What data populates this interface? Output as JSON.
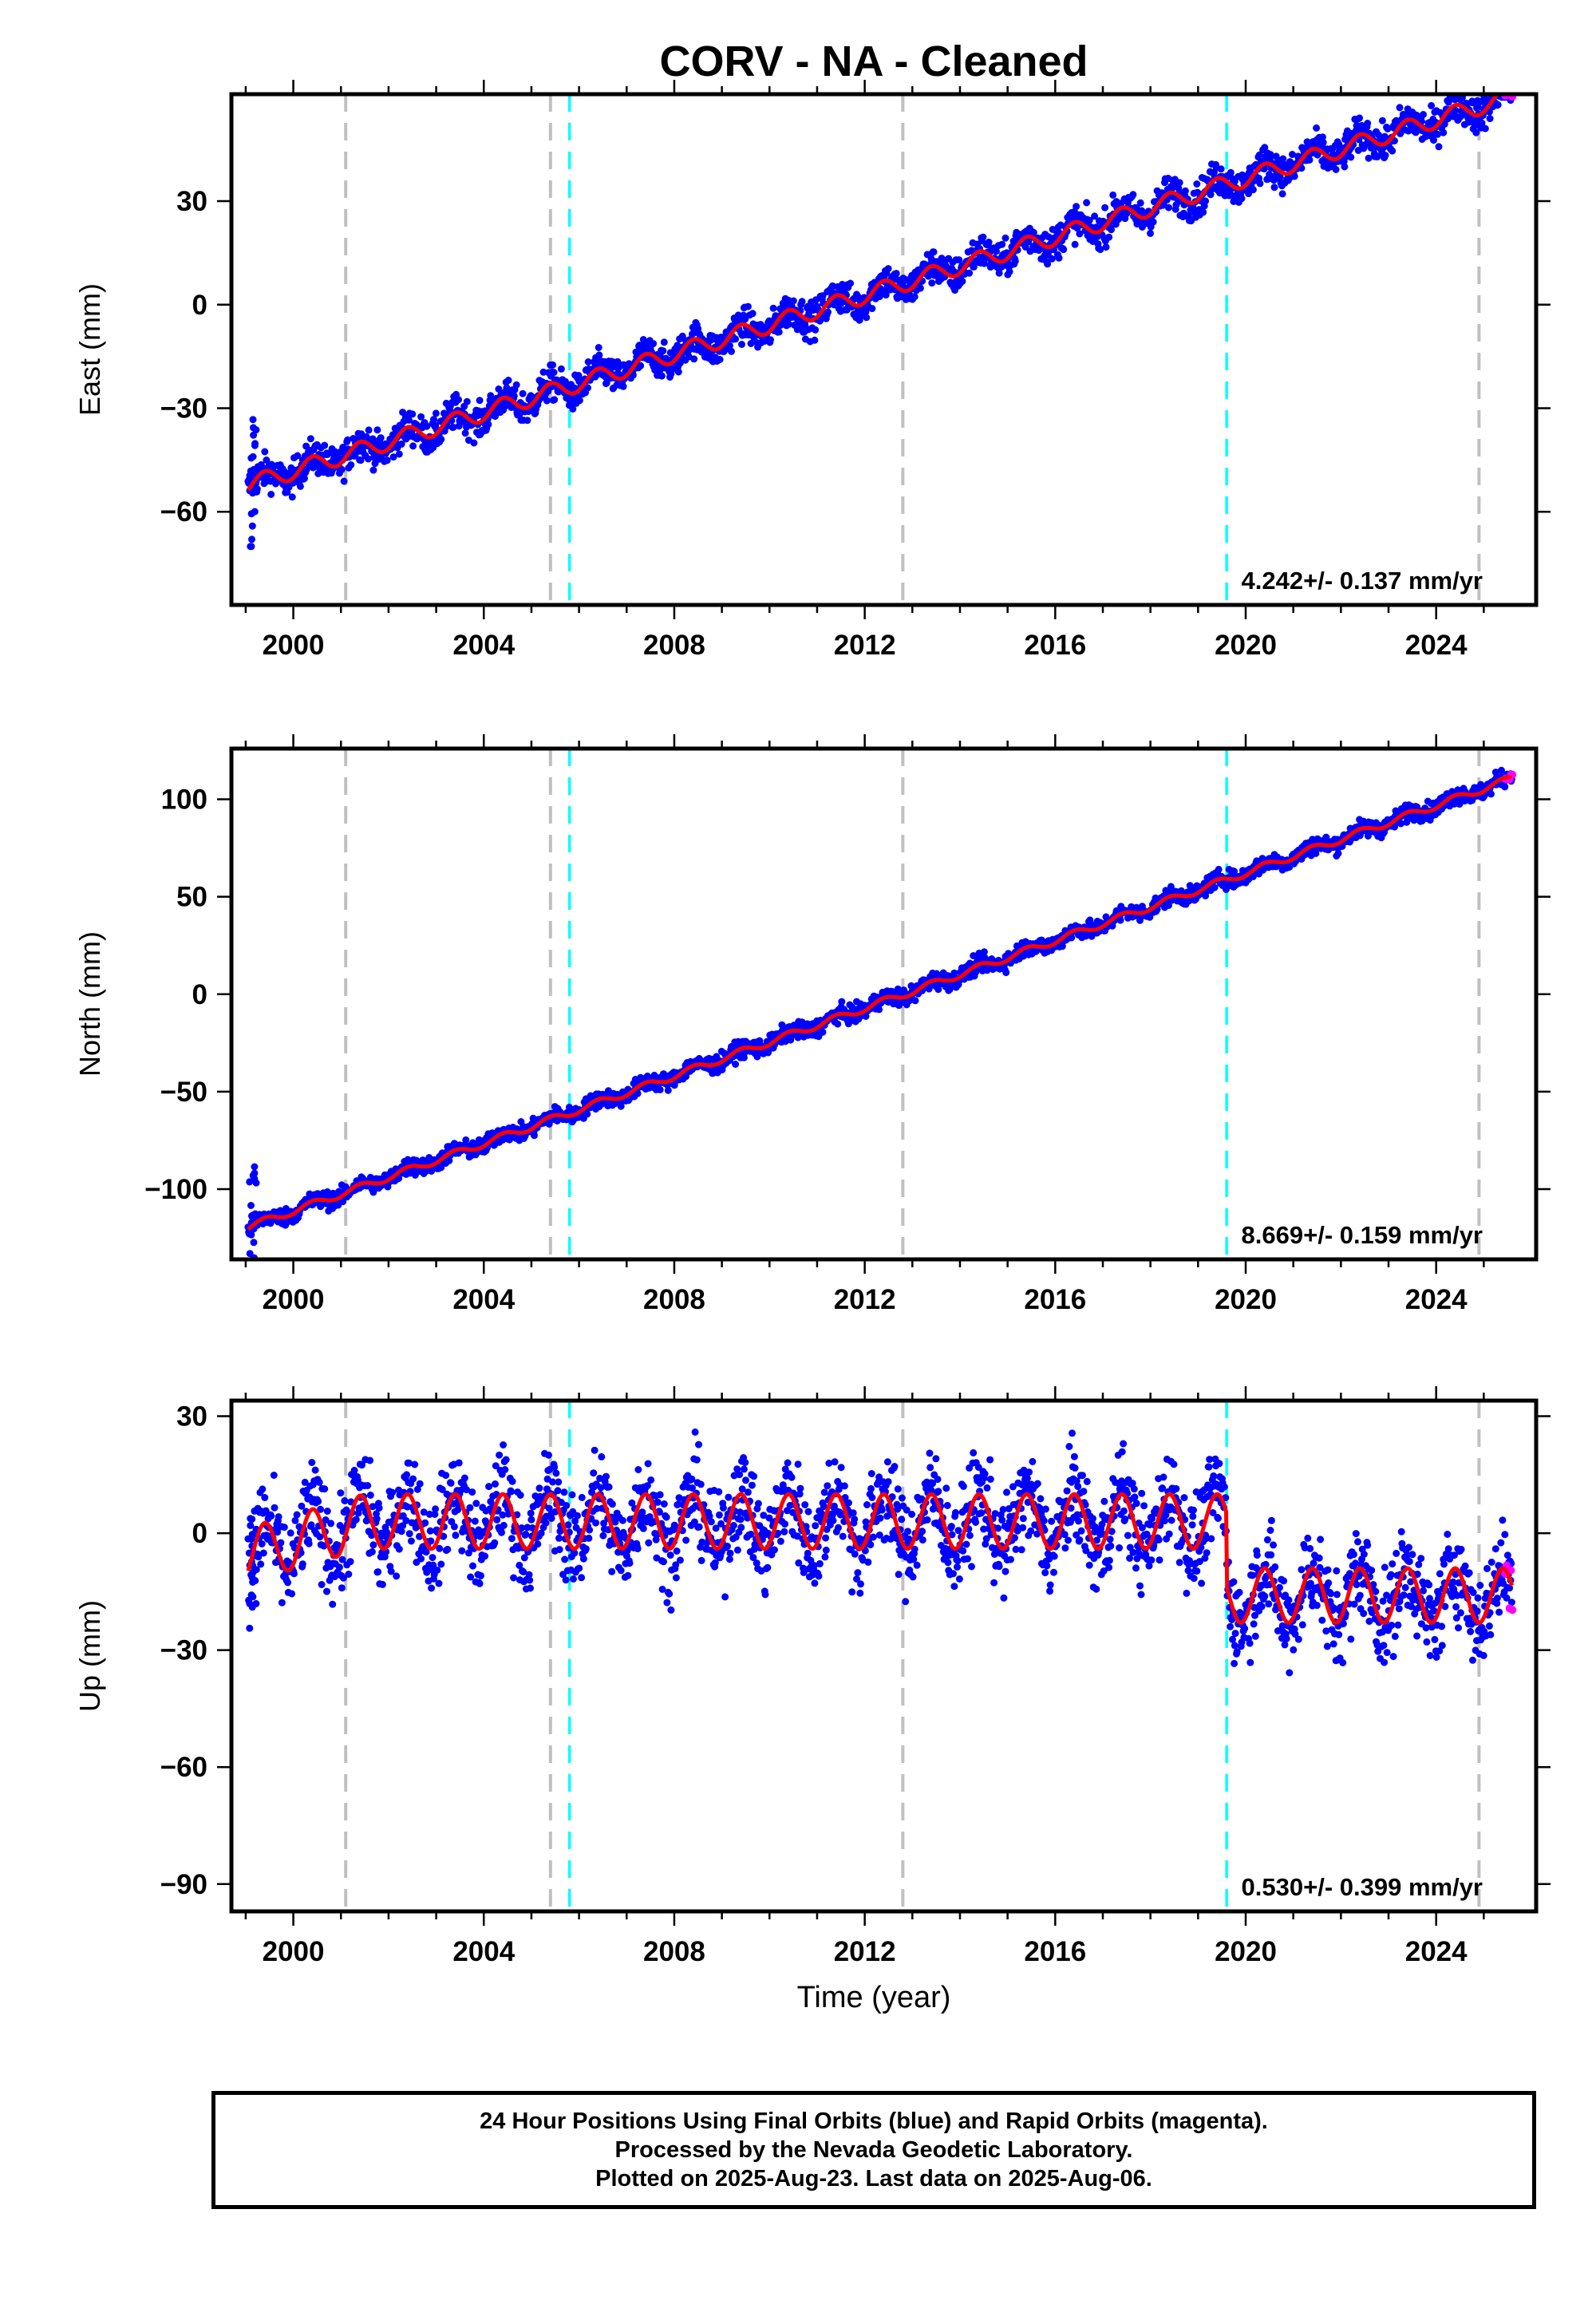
{
  "chart_data": {
    "title": "CORV  - NA - Cleaned",
    "type": "scatter",
    "xlabel": "Time (year)",
    "xlim": [
      1998.7,
      2026.1
    ],
    "xticks": [
      2000,
      2004,
      2008,
      2012,
      2016,
      2020,
      2024
    ],
    "colors": {
      "final_orbits": "#0000ff",
      "rapid_orbits": "#ff00ff",
      "model_fit": "#ff0000",
      "equipment_change": "#00ffff",
      "earthquake": "#c0c0c0"
    },
    "event_lines": {
      "gray": [
        2001.1,
        2005.4,
        2012.8,
        2024.9
      ],
      "cyan": [
        2005.8,
        2019.6
      ]
    },
    "panels": [
      {
        "id": "east",
        "ylabel": "East (mm)",
        "ylim": [
          -87,
          61
        ],
        "yticks": [
          30,
          0,
          -30,
          -60
        ],
        "velocity_text": "4.242+/- 0.137 mm/yr",
        "series": {
          "start_value": -52,
          "rate": 4.242,
          "seasonal_amplitude": 2.5,
          "scatter": 2.5,
          "end_value": 54
        }
      },
      {
        "id": "north",
        "ylabel": "North (mm)",
        "ylim": [
          -136,
          126
        ],
        "yticks": [
          100,
          50,
          0,
          -50,
          -100
        ],
        "velocity_text": "8.669+/- 0.159 mm/yr",
        "series": {
          "start_value": -119,
          "rate": 8.669,
          "seasonal_amplitude": 1.8,
          "scatter": 2.2,
          "end_value": 119
        }
      },
      {
        "id": "up",
        "ylabel": "Up (mm)",
        "ylim": [
          -97,
          34
        ],
        "yticks": [
          30,
          0,
          -30,
          -60,
          -90
        ],
        "velocity_text": "0.530+/- 0.399 mm/yr",
        "series": {
          "offset_before_2019_6": 3,
          "offset_after_2019_6": -16,
          "seasonal_amplitude": 7,
          "scatter": 6
        }
      }
    ]
  },
  "footer": {
    "line1": "24 Hour Positions Using Final Orbits (blue) and Rapid Orbits (magenta).",
    "line2": "Processed by the Nevada Geodetic Laboratory.",
    "line3": "Plotted on 2025-Aug-23. Last data on 2025-Aug-06."
  }
}
